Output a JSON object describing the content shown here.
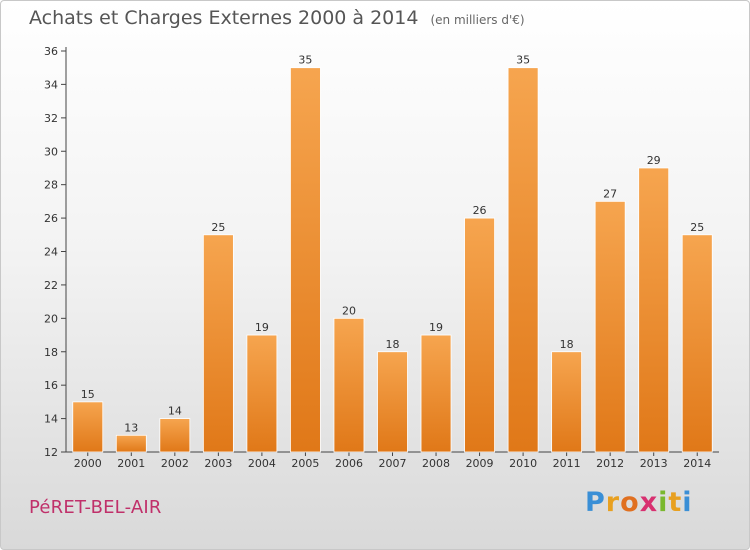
{
  "header": {
    "title": "Achats et Charges Externes 2000 à 2014",
    "unit": "(en milliers d'€)"
  },
  "footer": {
    "commune": "PéRET-BEL-AIR",
    "logo_letters": [
      {
        "char": "P",
        "color": "#3a8fd6"
      },
      {
        "char": "r",
        "color": "#e8a020"
      },
      {
        "char": "o",
        "color": "#e07020"
      },
      {
        "char": "x",
        "color": "#d83070"
      },
      {
        "char": "i",
        "color": "#7ab82e"
      },
      {
        "char": "t",
        "color": "#e8a020"
      },
      {
        "char": "i",
        "color": "#3a8fd6"
      }
    ]
  },
  "chart_data": {
    "type": "bar",
    "title": "Achats et Charges Externes 2000 à 2014",
    "subtitle": "(en milliers d'€)",
    "categories": [
      "2000",
      "2001",
      "2002",
      "2003",
      "2004",
      "2005",
      "2006",
      "2007",
      "2008",
      "2009",
      "2010",
      "2011",
      "2012",
      "2013",
      "2014"
    ],
    "values": [
      15,
      13,
      14,
      25,
      19,
      35,
      20,
      18,
      19,
      26,
      35,
      18,
      27,
      29,
      25
    ],
    "ylim": [
      12,
      36
    ],
    "yticks": [
      12,
      14,
      16,
      18,
      20,
      22,
      24,
      26,
      28,
      30,
      32,
      34,
      36
    ],
    "grid": false,
    "legend": "none",
    "colors": {
      "bar_light": "#f6a54f",
      "bar_dark": "#e07818",
      "axis": "#444444"
    }
  }
}
